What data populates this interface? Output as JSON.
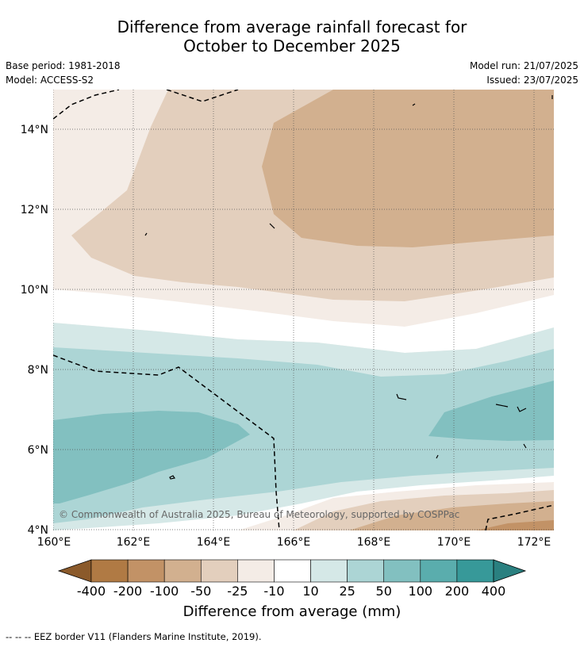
{
  "title": {
    "line1": "Difference from average rainfall forecast for",
    "line2": "October to December 2025"
  },
  "meta_left": {
    "base_period": "Base period: 1981-2018",
    "model": "Model: ACCESS-S2"
  },
  "meta_right": {
    "model_run": "Model run: 21/07/2025",
    "issued": "Issued: 23/07/2025"
  },
  "map": {
    "lat_labels": [
      "14°N",
      "12°N",
      "10°N",
      "8°N",
      "6°N",
      "4°N"
    ],
    "lon_labels": [
      "160°E",
      "162°E",
      "164°E",
      "166°E",
      "168°E",
      "170°E",
      "172°E"
    ],
    "copyright": "© Commonwealth of Australia 2025, Bureau of Meteorology, supported by COSPPac"
  },
  "colorbar": {
    "ticks": [
      "-400",
      "-200",
      "-100",
      "-50",
      "-25",
      "-10",
      "10",
      "25",
      "50",
      "100",
      "200",
      "400"
    ],
    "colors": [
      "#8b5a2b",
      "#b07a44",
      "#c29266",
      "#d2b08f",
      "#e3cfbd",
      "#f4ece6",
      "#ffffff",
      "#d5e8e7",
      "#acd5d5",
      "#82c0c0",
      "#5aadad",
      "#379999",
      "#2a8080"
    ],
    "title": "Difference from average (mm)"
  },
  "footnote": "--  --  -- EEZ border V11 (Flanders Marine Institute, 2019)."
}
